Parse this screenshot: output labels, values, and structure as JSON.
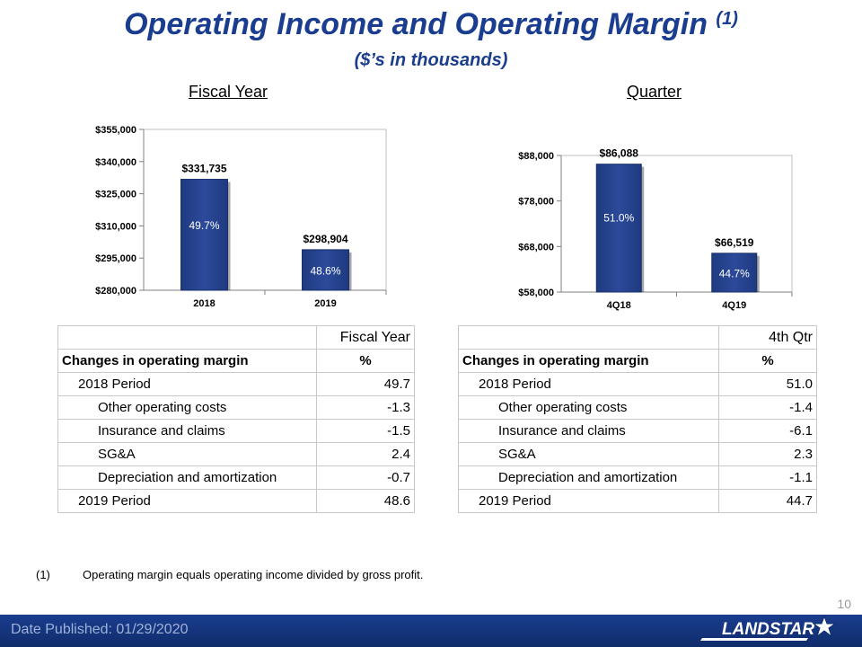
{
  "title": {
    "main": "Operating Income and Operating Margin",
    "sup": "(1)",
    "subtitle": "($’s in thousands)"
  },
  "fiscal_label": "Fiscal Year",
  "quarter_label": "Quarter",
  "chart_data": [
    {
      "type": "bar",
      "categories": [
        "2018",
        "2019"
      ],
      "values": [
        331735,
        298904
      ],
      "value_labels": [
        "$331,735",
        "$298,904"
      ],
      "margin_labels": [
        "49.7%",
        "48.6%"
      ],
      "yticks": [
        "$280,000",
        "$295,000",
        "$310,000",
        "$325,000",
        "$340,000",
        "$355,000"
      ],
      "ylim": [
        280000,
        355000
      ],
      "color": "#2c4a9a"
    },
    {
      "type": "bar",
      "categories": [
        "4Q18",
        "4Q19"
      ],
      "values": [
        86088,
        66519
      ],
      "value_labels": [
        "$86,088",
        "$66,519"
      ],
      "margin_labels": [
        "51.0%",
        "44.7%"
      ],
      "yticks": [
        "$58,000",
        "$68,000",
        "$78,000",
        "$88,000"
      ],
      "ylim": [
        58000,
        88000
      ],
      "color": "#2c4a9a"
    }
  ],
  "tables": [
    {
      "header": "Fiscal Year",
      "col_label": "Changes in operating margin",
      "col_unit": "%",
      "rows": [
        {
          "label": "2018 Period",
          "value": "49.7",
          "level": 1
        },
        {
          "label": "Other operating costs",
          "value": "-1.3",
          "level": 2
        },
        {
          "label": "Insurance and claims",
          "value": "-1.5",
          "level": 2
        },
        {
          "label": "SG&A",
          "value": "2.4",
          "level": 2
        },
        {
          "label": "Depreciation and amortization",
          "value": "-0.7",
          "level": 2
        },
        {
          "label": "2019 Period",
          "value": "48.6",
          "level": 1
        }
      ]
    },
    {
      "header": "4th Qtr",
      "col_label": "Changes in operating margin",
      "col_unit": "%",
      "rows": [
        {
          "label": "2018 Period",
          "value": "51.0",
          "level": 1
        },
        {
          "label": "Other operating costs",
          "value": "-1.4",
          "level": 2
        },
        {
          "label": "Insurance and claims",
          "value": "-6.1",
          "level": 2
        },
        {
          "label": "SG&A",
          "value": "2.3",
          "level": 2
        },
        {
          "label": "Depreciation and amortization",
          "value": "-1.1",
          "level": 2
        },
        {
          "label": "2019 Period",
          "value": "44.7",
          "level": 1
        }
      ]
    }
  ],
  "footnote": {
    "num": "(1)",
    "text": "Operating margin equals operating income divided by gross profit."
  },
  "footer": {
    "date": "Date Published:  01/29/2020",
    "page": "10",
    "logo": "LANDSTAR"
  },
  "colors": {
    "title": "#1a3d8f",
    "bar": "#2c4a9a",
    "footer": "#1a3d8f"
  }
}
